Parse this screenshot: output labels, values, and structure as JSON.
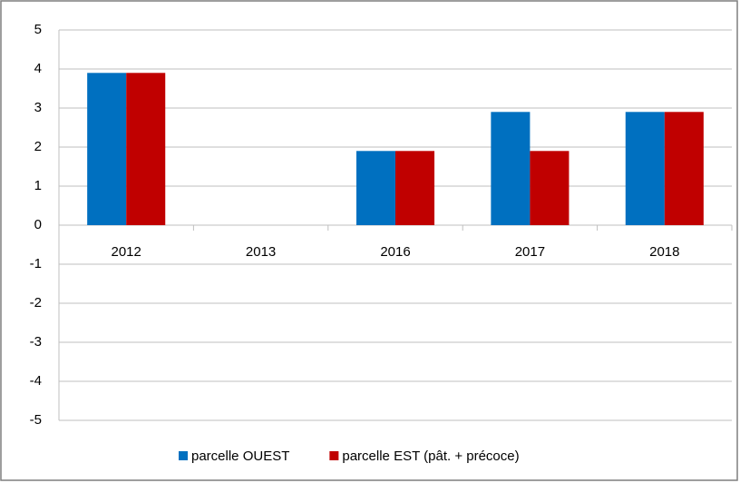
{
  "chart_data": {
    "type": "bar",
    "categories": [
      "2012",
      "2013",
      "2016",
      "2017",
      "2018"
    ],
    "series": [
      {
        "name": "parcelle OUEST",
        "color": "#0070c0",
        "values": [
          3.9,
          null,
          1.9,
          2.9,
          2.9
        ]
      },
      {
        "name": "parcelle EST (pât. + précoce)",
        "color": "#c00000",
        "values": [
          3.9,
          null,
          1.9,
          1.9,
          2.9
        ]
      }
    ],
    "ylim": [
      -5,
      5
    ],
    "yticks": [
      -5,
      -4,
      -3,
      -2,
      -1,
      0,
      1,
      2,
      3,
      4,
      5
    ],
    "grid": true,
    "legend": "bottom"
  }
}
